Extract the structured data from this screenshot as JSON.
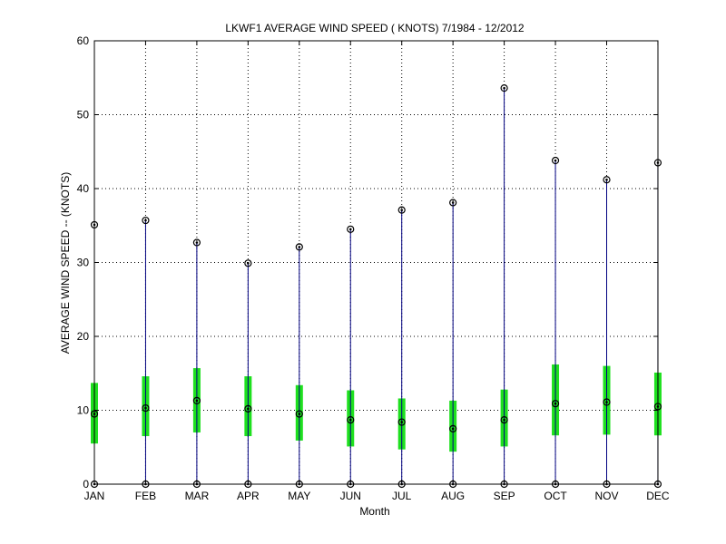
{
  "chart_data": {
    "type": "box",
    "title": "LKWF1  AVERAGE WIND SPEED ( KNOTS) 7/1984 - 12/2012",
    "xlabel": "Month",
    "ylabel": "AVERAGE WIND SPEED -- (KNOTS)",
    "ylim": [
      0,
      60
    ],
    "yticks": [
      0,
      10,
      20,
      30,
      40,
      50,
      60
    ],
    "grid": true,
    "categories": [
      "JAN",
      "FEB",
      "MAR",
      "APR",
      "MAY",
      "JUN",
      "JUL",
      "AUG",
      "SEP",
      "OCT",
      "NOV",
      "DEC"
    ],
    "min": [
      0,
      0,
      0,
      0,
      0,
      0,
      0,
      0,
      0,
      0,
      0,
      0
    ],
    "q1": [
      5.5,
      6.5,
      7.0,
      6.5,
      5.9,
      5.1,
      4.7,
      4.4,
      5.1,
      6.6,
      6.7,
      6.6
    ],
    "median": [
      9.5,
      10.3,
      11.3,
      10.2,
      9.5,
      8.7,
      8.4,
      7.5,
      8.7,
      10.9,
      11.1,
      10.5
    ],
    "q3": [
      13.7,
      14.6,
      15.7,
      14.6,
      13.4,
      12.7,
      11.6,
      11.3,
      12.8,
      16.2,
      16.0,
      15.1
    ],
    "max": [
      35.1,
      35.7,
      32.7,
      29.9,
      32.1,
      34.5,
      37.1,
      38.1,
      53.6,
      43.8,
      41.2,
      43.5
    ],
    "colors": {
      "whisker": "#000080",
      "box": "#1ee01e",
      "marker": "#000000",
      "grid": "#000000"
    }
  }
}
